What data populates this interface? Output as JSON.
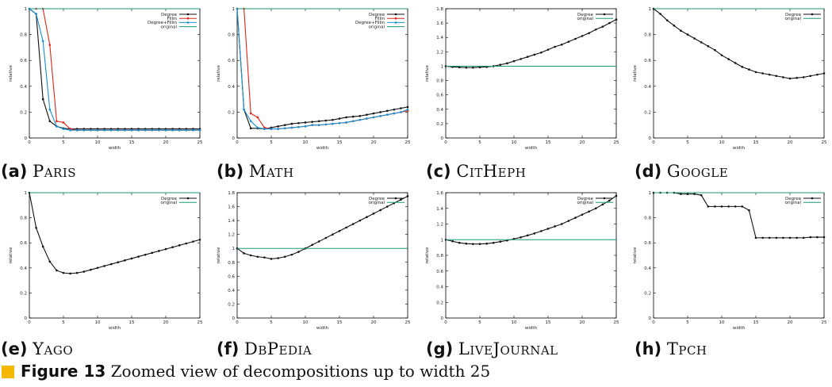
{
  "figure": {
    "number_label": "Figure 13",
    "text": "Zoomed view of decompositions up to width 25",
    "accent_color": "#f5b800"
  },
  "colors": {
    "Degree": "#111111",
    "Fillin": "#e0241b",
    "Degree+Fillin": "#1a8fd0",
    "original": "#1a9a78"
  },
  "chart_data": [
    {
      "label": "(a)",
      "name": "Paris",
      "type": "line",
      "xlabel": "width",
      "ylabel": "relative",
      "xlim": [
        0,
        25
      ],
      "ylim": [
        0,
        1
      ],
      "xticks": [
        0,
        5,
        10,
        15,
        20,
        25
      ],
      "yticks": [
        0,
        0.2,
        0.4,
        0.6,
        0.8,
        1
      ],
      "ytick_labels": [
        "0",
        "0.2",
        "0.4",
        "0.6",
        "0.8",
        "1"
      ],
      "legend": "top-right",
      "series": [
        {
          "name": "Degree",
          "values": [
            1.0,
            0.96,
            0.3,
            0.13,
            0.09,
            0.075,
            0.07,
            0.07,
            0.07,
            0.07,
            0.07,
            0.07,
            0.07,
            0.07,
            0.07,
            0.07,
            0.07,
            0.07,
            0.07,
            0.07,
            0.07,
            0.07,
            0.07,
            0.07,
            0.07,
            0.07
          ]
        },
        {
          "name": "Fillin",
          "values": [
            1.0,
            1.0,
            1.0,
            0.72,
            0.13,
            0.12,
            0.07,
            0.06,
            0.06,
            0.06,
            0.06,
            0.06,
            0.06,
            0.06,
            0.06,
            0.06,
            0.06,
            0.06,
            0.06,
            0.06,
            0.06,
            0.06,
            0.06,
            0.06,
            0.06,
            0.06
          ]
        },
        {
          "name": "Degree+Fillin",
          "values": [
            1.0,
            0.96,
            0.75,
            0.22,
            0.09,
            0.07,
            0.06,
            0.06,
            0.06,
            0.06,
            0.06,
            0.06,
            0.06,
            0.06,
            0.06,
            0.06,
            0.06,
            0.06,
            0.06,
            0.06,
            0.06,
            0.06,
            0.06,
            0.06,
            0.06,
            0.06
          ]
        },
        {
          "name": "original",
          "values": [
            1,
            1,
            1,
            1,
            1,
            1,
            1,
            1,
            1,
            1,
            1,
            1,
            1,
            1,
            1,
            1,
            1,
            1,
            1,
            1,
            1,
            1,
            1,
            1,
            1,
            1
          ]
        }
      ]
    },
    {
      "label": "(b)",
      "name": "Math",
      "type": "line",
      "xlabel": "width",
      "ylabel": "relative",
      "xlim": [
        0,
        25
      ],
      "ylim": [
        0,
        1
      ],
      "xticks": [
        0,
        5,
        10,
        15,
        20,
        25
      ],
      "yticks": [
        0,
        0.2,
        0.4,
        0.6,
        0.8,
        1
      ],
      "ytick_labels": [
        "0",
        "0.2",
        "0.4",
        "0.6",
        "0.8",
        "1"
      ],
      "legend": "top-right",
      "series": [
        {
          "name": "Degree",
          "values": [
            1.0,
            0.22,
            0.075,
            0.075,
            0.07,
            0.08,
            0.09,
            0.1,
            0.11,
            0.115,
            0.12,
            0.125,
            0.13,
            0.135,
            0.14,
            0.15,
            0.16,
            0.165,
            0.17,
            0.18,
            0.19,
            0.2,
            0.21,
            0.22,
            0.23,
            0.24
          ]
        },
        {
          "name": "Fillin",
          "values": [
            1.0,
            1.0,
            0.19,
            0.16,
            0.08,
            0.07,
            0.07,
            0.075,
            0.08,
            0.085,
            0.09,
            0.1,
            0.1,
            0.105,
            0.11,
            0.115,
            0.12,
            0.13,
            0.14,
            0.15,
            0.16,
            0.17,
            0.18,
            0.19,
            0.2,
            0.21
          ]
        },
        {
          "name": "Degree+Fillin",
          "values": [
            1.0,
            0.22,
            0.13,
            0.08,
            0.07,
            0.07,
            0.07,
            0.075,
            0.08,
            0.085,
            0.09,
            0.1,
            0.1,
            0.105,
            0.11,
            0.115,
            0.12,
            0.13,
            0.14,
            0.15,
            0.16,
            0.17,
            0.18,
            0.19,
            0.2,
            0.22
          ]
        },
        {
          "name": "original",
          "values": [
            1,
            1,
            1,
            1,
            1,
            1,
            1,
            1,
            1,
            1,
            1,
            1,
            1,
            1,
            1,
            1,
            1,
            1,
            1,
            1,
            1,
            1,
            1,
            1,
            1,
            1
          ]
        }
      ]
    },
    {
      "label": "(c)",
      "name": "CitHeph",
      "type": "line",
      "xlabel": "width",
      "ylabel": "relative",
      "xlim": [
        0,
        25
      ],
      "ylim": [
        0,
        1.8
      ],
      "xticks": [
        0,
        5,
        10,
        15,
        20,
        25
      ],
      "yticks": [
        0,
        0.2,
        0.4,
        0.6,
        0.8,
        1,
        1.2,
        1.4,
        1.6,
        1.8
      ],
      "ytick_labels": [
        "0",
        "0.2",
        "0.4",
        "0.6",
        "0.8",
        "1",
        "1.2",
        "1.4",
        "1.6",
        "1.8"
      ],
      "legend": "top-right",
      "series": [
        {
          "name": "Degree",
          "values": [
            1.0,
            0.99,
            0.985,
            0.98,
            0.98,
            0.985,
            0.99,
            1.0,
            1.02,
            1.04,
            1.07,
            1.1,
            1.13,
            1.16,
            1.19,
            1.23,
            1.27,
            1.3,
            1.34,
            1.38,
            1.42,
            1.46,
            1.51,
            1.55,
            1.6,
            1.65
          ]
        },
        {
          "name": "original",
          "values": [
            1,
            1,
            1,
            1,
            1,
            1,
            1,
            1,
            1,
            1,
            1,
            1,
            1,
            1,
            1,
            1,
            1,
            1,
            1,
            1,
            1,
            1,
            1,
            1,
            1,
            1
          ]
        }
      ]
    },
    {
      "label": "(d)",
      "name": "Google",
      "type": "line",
      "xlabel": "width",
      "ylabel": "relative",
      "xlim": [
        0,
        25
      ],
      "ylim": [
        0,
        1
      ],
      "xticks": [
        0,
        5,
        10,
        15,
        20,
        25
      ],
      "yticks": [
        0,
        0.2,
        0.4,
        0.6,
        0.8,
        1
      ],
      "ytick_labels": [
        "0",
        "0.2",
        "0.4",
        "0.6",
        "0.8",
        "1"
      ],
      "legend": "top-right",
      "series": [
        {
          "name": "Degree",
          "values": [
            1.0,
            0.96,
            0.91,
            0.87,
            0.83,
            0.8,
            0.77,
            0.74,
            0.71,
            0.68,
            0.64,
            0.61,
            0.58,
            0.55,
            0.53,
            0.51,
            0.5,
            0.49,
            0.48,
            0.47,
            0.46,
            0.465,
            0.47,
            0.48,
            0.49,
            0.5
          ]
        },
        {
          "name": "original",
          "values": [
            1,
            1,
            1,
            1,
            1,
            1,
            1,
            1,
            1,
            1,
            1,
            1,
            1,
            1,
            1,
            1,
            1,
            1,
            1,
            1,
            1,
            1,
            1,
            1,
            1,
            1
          ]
        }
      ]
    },
    {
      "label": "(e)",
      "name": "Yago",
      "type": "line",
      "xlabel": "width",
      "ylabel": "relative",
      "xlim": [
        0,
        25
      ],
      "ylim": [
        0,
        1
      ],
      "xticks": [
        0,
        5,
        10,
        15,
        20,
        25
      ],
      "yticks": [
        0,
        0.2,
        0.4,
        0.6,
        0.8,
        1
      ],
      "ytick_labels": [
        "0",
        "0.2",
        "0.4",
        "0.6",
        "0.8",
        "1"
      ],
      "legend": "top-right",
      "series": [
        {
          "name": "Degree",
          "values": [
            1.0,
            0.72,
            0.57,
            0.45,
            0.38,
            0.36,
            0.355,
            0.36,
            0.37,
            0.385,
            0.4,
            0.415,
            0.43,
            0.445,
            0.46,
            0.475,
            0.49,
            0.505,
            0.52,
            0.535,
            0.55,
            0.565,
            0.58,
            0.595,
            0.61,
            0.625
          ]
        },
        {
          "name": "original",
          "values": [
            1,
            1,
            1,
            1,
            1,
            1,
            1,
            1,
            1,
            1,
            1,
            1,
            1,
            1,
            1,
            1,
            1,
            1,
            1,
            1,
            1,
            1,
            1,
            1,
            1,
            1
          ]
        }
      ]
    },
    {
      "label": "(f)",
      "name": "DbPedia",
      "type": "line",
      "xlabel": "width",
      "ylabel": "relative",
      "xlim": [
        0,
        25
      ],
      "ylim": [
        0,
        1.8
      ],
      "xticks": [
        0,
        5,
        10,
        15,
        20,
        25
      ],
      "yticks": [
        0,
        0.2,
        0.4,
        0.6,
        0.8,
        1,
        1.2,
        1.4,
        1.6,
        1.8
      ],
      "ytick_labels": [
        "0",
        "0.2",
        "0.4",
        "0.6",
        "0.8",
        "1",
        "1.2",
        "1.4",
        "1.6",
        "1.8"
      ],
      "legend": "top-right",
      "series": [
        {
          "name": "Degree",
          "values": [
            1.0,
            0.93,
            0.9,
            0.88,
            0.87,
            0.85,
            0.86,
            0.88,
            0.91,
            0.95,
            1.0,
            1.05,
            1.1,
            1.15,
            1.2,
            1.25,
            1.3,
            1.35,
            1.4,
            1.45,
            1.5,
            1.55,
            1.6,
            1.65,
            1.7,
            1.75
          ]
        },
        {
          "name": "original",
          "values": [
            1,
            1,
            1,
            1,
            1,
            1,
            1,
            1,
            1,
            1,
            1,
            1,
            1,
            1,
            1,
            1,
            1,
            1,
            1,
            1,
            1,
            1,
            1,
            1,
            1,
            1
          ]
        }
      ]
    },
    {
      "label": "(g)",
      "name": "LiveJournal",
      "type": "line",
      "xlabel": "width",
      "ylabel": "relative",
      "xlim": [
        0,
        25
      ],
      "ylim": [
        0,
        1.6
      ],
      "xticks": [
        0,
        5,
        10,
        15,
        20,
        25
      ],
      "yticks": [
        0,
        0.2,
        0.4,
        0.6,
        0.8,
        1,
        1.2,
        1.4,
        1.6
      ],
      "ytick_labels": [
        "0",
        "0.2",
        "0.4",
        "0.6",
        "0.8",
        "1",
        "1.2",
        "1.4",
        "1.6"
      ],
      "legend": "top-right",
      "series": [
        {
          "name": "Degree",
          "values": [
            1.0,
            0.98,
            0.96,
            0.95,
            0.945,
            0.945,
            0.95,
            0.96,
            0.975,
            0.99,
            1.01,
            1.03,
            1.055,
            1.08,
            1.11,
            1.14,
            1.17,
            1.2,
            1.24,
            1.28,
            1.32,
            1.36,
            1.4,
            1.45,
            1.5,
            1.56
          ]
        },
        {
          "name": "original",
          "values": [
            1,
            1,
            1,
            1,
            1,
            1,
            1,
            1,
            1,
            1,
            1,
            1,
            1,
            1,
            1,
            1,
            1,
            1,
            1,
            1,
            1,
            1,
            1,
            1,
            1,
            1
          ]
        }
      ]
    },
    {
      "label": "(h)",
      "name": "Tpch",
      "type": "line",
      "xlabel": "width",
      "ylabel": "relative",
      "xlim": [
        0,
        25
      ],
      "ylim": [
        0,
        1
      ],
      "xticks": [
        0,
        5,
        10,
        15,
        20,
        25
      ],
      "yticks": [
        0,
        0.2,
        0.4,
        0.6,
        0.8,
        1
      ],
      "ytick_labels": [
        "0",
        "0.2",
        "0.4",
        "0.6",
        "0.8",
        "1"
      ],
      "legend": "top-right",
      "series": [
        {
          "name": "Degree",
          "values": [
            1.0,
            1.0,
            1.0,
            1.0,
            0.99,
            0.99,
            0.99,
            0.98,
            0.89,
            0.89,
            0.89,
            0.89,
            0.89,
            0.89,
            0.86,
            0.64,
            0.64,
            0.64,
            0.64,
            0.64,
            0.64,
            0.64,
            0.64,
            0.645,
            0.645,
            0.645
          ]
        },
        {
          "name": "original",
          "values": [
            1,
            1,
            1,
            1,
            1,
            1,
            1,
            1,
            1,
            1,
            1,
            1,
            1,
            1,
            1,
            1,
            1,
            1,
            1,
            1,
            1,
            1,
            1,
            1,
            1,
            1
          ]
        }
      ]
    }
  ]
}
